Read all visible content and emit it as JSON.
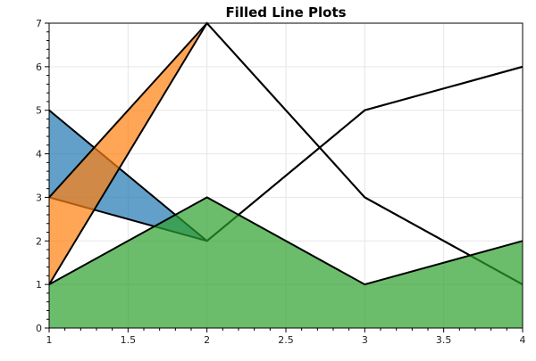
{
  "chart_data": {
    "type": "area",
    "title": "Filled Line Plots",
    "xlabel": "",
    "ylabel": "",
    "xlim": [
      1,
      4
    ],
    "ylim": [
      0,
      7
    ],
    "x_ticks": [
      "1",
      "1.5",
      "2",
      "2.5",
      "3",
      "3.5",
      "4"
    ],
    "y_ticks": [
      "0",
      "1",
      "2",
      "3",
      "4",
      "5",
      "6",
      "7"
    ],
    "grid": true,
    "legend": "none",
    "x": [
      1,
      2,
      3,
      4
    ],
    "series": [
      {
        "color": "#1f77b4",
        "lower": [
          3,
          2,
          5,
          6
        ],
        "upper": [
          5,
          2,
          5,
          6
        ],
        "values": [
          5,
          2,
          5,
          6
        ]
      },
      {
        "color": "#ff7f0e",
        "lower": [
          1,
          7,
          3,
          1
        ],
        "upper": [
          3,
          7,
          3,
          1
        ],
        "values": [
          3,
          7,
          3,
          1
        ]
      },
      {
        "color": "#2ca02c",
        "lower": [
          0,
          0,
          0,
          0
        ],
        "upper": [
          1,
          3,
          1,
          2
        ],
        "values": [
          1,
          3,
          1,
          2
        ]
      }
    ]
  }
}
